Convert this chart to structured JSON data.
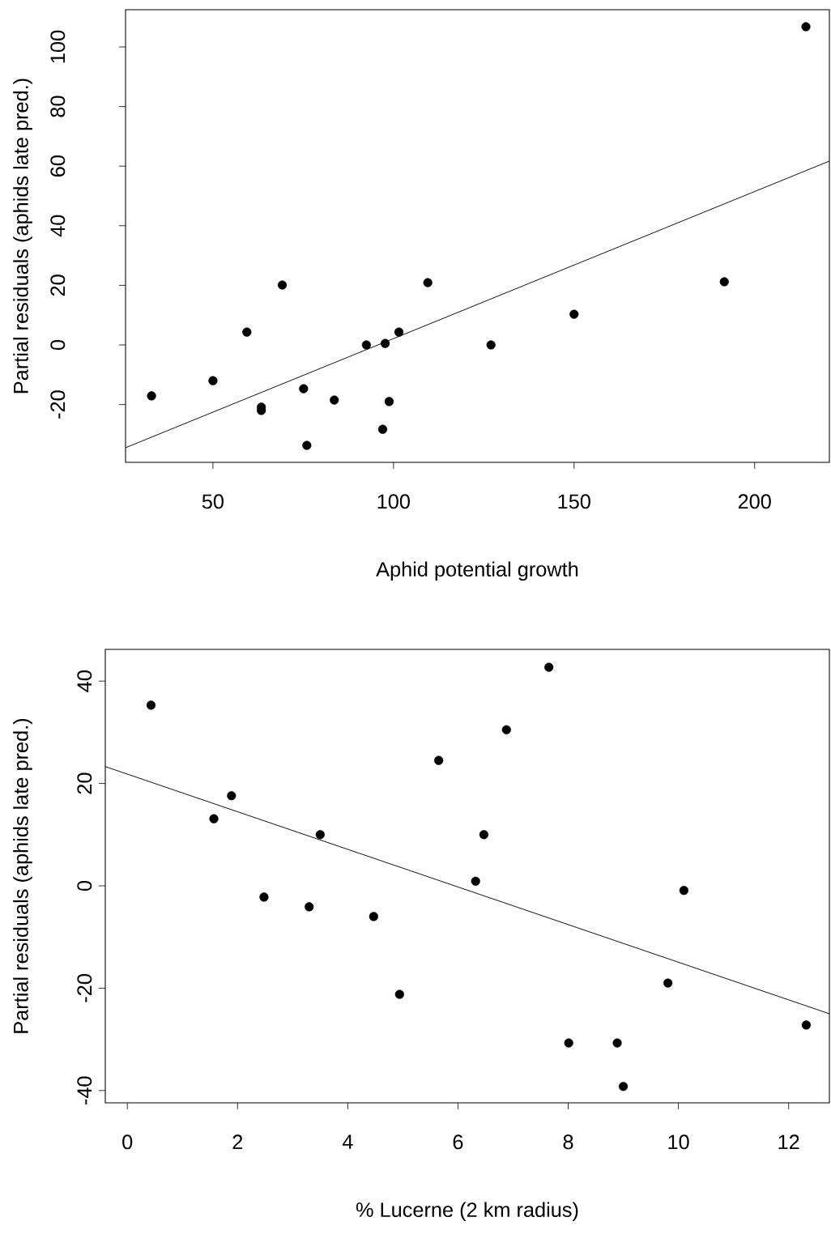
{
  "chart_data": [
    {
      "type": "scatter",
      "xlabel": "Aphid potential growth",
      "ylabel": "Partial residuals (aphids late pred.)",
      "xlim": [
        25.8,
        220.7
      ],
      "ylim": [
        -39.4,
        112.5
      ],
      "xticks": [
        50,
        100,
        150,
        200
      ],
      "yticks": [
        -20,
        0,
        20,
        40,
        60,
        80,
        100
      ],
      "series": [
        {
          "type": "scatter",
          "marker": "circle",
          "color": "#000000",
          "x": [
            33.0,
            50.0,
            59.4,
            69.2,
            63.4,
            63.4,
            75.1,
            76.0,
            83.6,
            92.5,
            97.0,
            97.7,
            98.8,
            101.5,
            109.5,
            127.0,
            150.0,
            191.6,
            214.2
          ],
          "values": [
            -17.1,
            -12.0,
            4.3,
            20.1,
            -20.9,
            -22.0,
            -14.7,
            -33.7,
            -18.5,
            0,
            -28.3,
            0.5,
            -19.0,
            4.3,
            20.9,
            0,
            10.3,
            21.2,
            106.8
          ]
        },
        {
          "type": "line",
          "marker": "none",
          "color": "#000000",
          "x": [
            25.8,
            220.7
          ],
          "values": [
            -34.5,
            61.7
          ]
        }
      ]
    },
    {
      "type": "scatter",
      "xlabel": "% Lucerne (2 km radius)",
      "ylabel": "Partial residuals (aphids late pred.)",
      "xlim": [
        -0.4,
        12.74
      ],
      "ylim": [
        -42.4,
        46.2
      ],
      "xticks": [
        0,
        2,
        4,
        6,
        8,
        10,
        12
      ],
      "yticks": [
        -40,
        -20,
        0,
        20,
        40
      ],
      "series": [
        {
          "type": "scatter",
          "marker": "circle",
          "color": "#000000",
          "x": [
            0.43,
            1.57,
            1.89,
            2.48,
            3.3,
            3.5,
            4.47,
            4.94,
            5.65,
            6.32,
            6.47,
            6.88,
            7.65,
            8.01,
            8.89,
            9.0,
            9.81,
            10.1,
            12.32
          ],
          "values": [
            35.3,
            13.1,
            17.6,
            -2.2,
            -4.1,
            10.0,
            -6.0,
            -21.2,
            24.5,
            0.9,
            10.0,
            30.5,
            42.7,
            -30.7,
            -30.7,
            -39.2,
            -19.0,
            -0.9,
            -27.2
          ]
        },
        {
          "type": "line",
          "marker": "none",
          "color": "#000000",
          "x": [
            -0.4,
            12.74
          ],
          "values": [
            23.3,
            -25.0
          ]
        }
      ]
    }
  ]
}
